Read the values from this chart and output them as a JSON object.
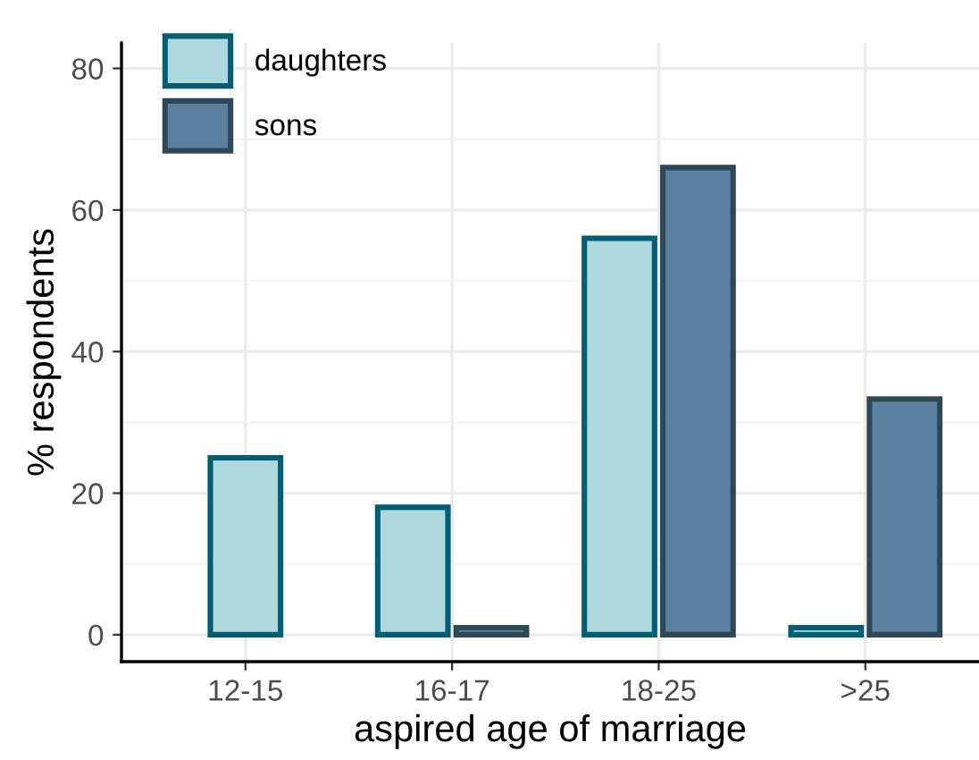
{
  "chart_data": {
    "type": "bar",
    "xlabel": "aspired age of marriage",
    "ylabel": "% respondents",
    "categories": [
      "12-15",
      "16-17",
      "18-25",
      ">25"
    ],
    "series": [
      {
        "name": "daughters",
        "color": "#aed8de",
        "values": [
          25,
          18,
          56,
          1
        ]
      },
      {
        "name": "sons",
        "color": "#5a82a0",
        "values": [
          null,
          1,
          66,
          33.3
        ]
      }
    ],
    "ylim": [
      -3.8,
      83.6
    ],
    "yticks": [
      0,
      20,
      40,
      60,
      80
    ],
    "grid": true,
    "legend": "top left"
  }
}
